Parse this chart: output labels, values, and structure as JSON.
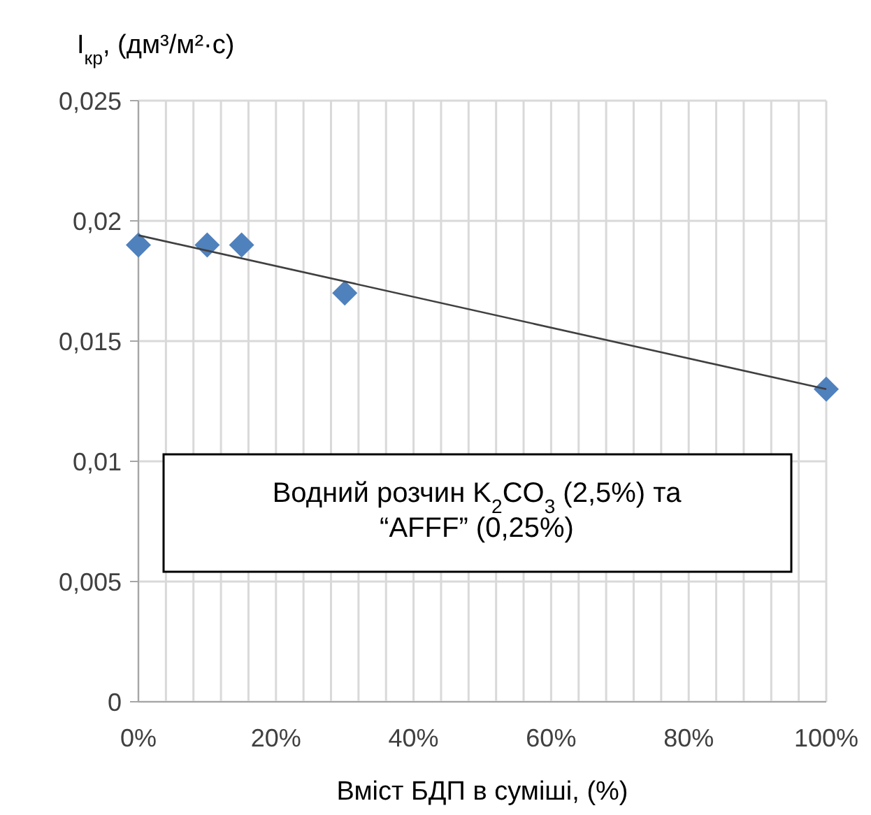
{
  "chart_data": {
    "type": "scatter",
    "ylabel": "I$_{кр}$, (дм³/м²·с)",
    "xlabel": "Вміст БДП в суміші, (%)",
    "annotations": [
      "Водний розчин K$_{2}$CO$_{3}$ (2,5%) та “AFFF” (0,25%)"
    ],
    "series": [
      {
        "color": "#4f81bd",
        "x": [
          0,
          10,
          15,
          30,
          100
        ],
        "values": [
          0.019,
          0.019,
          0.019,
          0.017,
          0.013
        ],
        "marker": "diamond"
      },
      {
        "type": "line",
        "color": "#404040",
        "x": [
          0,
          100
        ],
        "values": [
          0.0194,
          0.013
        ],
        "marker": "none",
        "line_style": "solid"
      }
    ],
    "xlim": [
      0,
      100
    ],
    "xticks": [
      {
        "value": 0,
        "label": "0%"
      },
      {
        "value": 4,
        "label": null
      },
      {
        "value": 8,
        "label": null
      },
      {
        "value": 12,
        "label": null
      },
      {
        "value": 16,
        "label": null
      },
      {
        "value": 20,
        "label": "20%"
      },
      {
        "value": 24,
        "label": null
      },
      {
        "value": 28,
        "label": null
      },
      {
        "value": 32,
        "label": null
      },
      {
        "value": 36,
        "label": null
      },
      {
        "value": 40,
        "label": "40%"
      },
      {
        "value": 44,
        "label": null
      },
      {
        "value": 48,
        "label": null
      },
      {
        "value": 52,
        "label": null
      },
      {
        "value": 56,
        "label": null
      },
      {
        "value": 60,
        "label": "60%"
      },
      {
        "value": 64,
        "label": null
      },
      {
        "value": 68,
        "label": null
      },
      {
        "value": 72,
        "label": null
      },
      {
        "value": 76,
        "label": null
      },
      {
        "value": 80,
        "label": "80%"
      },
      {
        "value": 84,
        "label": null
      },
      {
        "value": 88,
        "label": null
      },
      {
        "value": 92,
        "label": null
      },
      {
        "value": 96,
        "label": null
      },
      {
        "value": 100,
        "label": "100%"
      }
    ],
    "ylim": [
      0,
      0.025
    ],
    "yticks": [
      {
        "value": 0,
        "label": "0"
      },
      {
        "value": 0.005,
        "label": "0,005"
      },
      {
        "value": 0.01,
        "label": "0,01"
      },
      {
        "value": 0.015,
        "label": "0,015"
      },
      {
        "value": 0.02,
        "label": "0,02"
      },
      {
        "value": 0.025,
        "label": "0,025"
      }
    ],
    "grid": true
  }
}
